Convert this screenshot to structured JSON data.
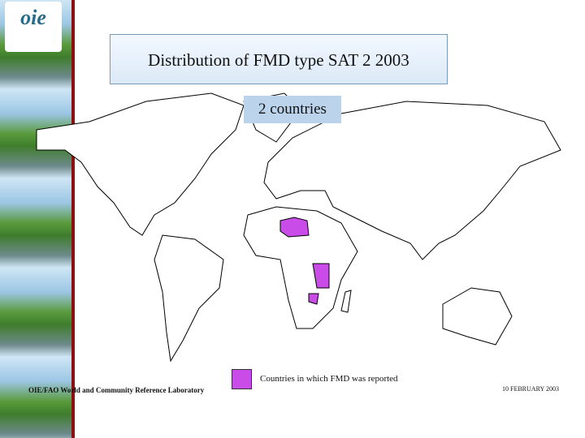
{
  "logo": "oie",
  "header": {
    "title": "Distribution of FMD type SAT 2  2003",
    "subtitle": "2 countries"
  },
  "legend": {
    "label": "Countries in which FMD was reported"
  },
  "footer": {
    "laboratory": "OIE/FAO World and Community Reference Laboratory",
    "date": "10 FEBRUARY 2003"
  }
}
